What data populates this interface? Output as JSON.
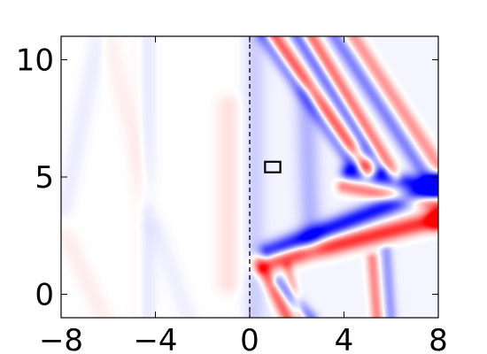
{
  "chart_data": {
    "type": "heatmap",
    "title": "",
    "xlabel": "",
    "ylabel": "",
    "xlim": [
      -8,
      8
    ],
    "ylim": [
      -1,
      11
    ],
    "x_ticks": [
      -8,
      -4,
      0,
      4,
      8
    ],
    "y_ticks": [
      0,
      5,
      10
    ],
    "x_tick_labels": [
      "−8",
      "−4",
      "0",
      "4",
      "8"
    ],
    "y_tick_labels": [
      "0",
      "5",
      "10"
    ],
    "grid": false,
    "colormap": "bwr",
    "colors": {
      "positive": "#ff0000",
      "negative": "#0000ff",
      "zero": "#ffffff"
    },
    "marker_line": {
      "x": 0,
      "style": "dashed"
    },
    "marker_box": {
      "x": [
        0.65,
        1.3
      ],
      "y": [
        5.2,
        5.65
      ]
    },
    "features": [
      {
        "kind": "band",
        "x0": 0.6,
        "y0": 11,
        "x1": 4.4,
        "y1": 5.5,
        "sign": -1,
        "amp": 0.55,
        "w": 0.22
      },
      {
        "kind": "band",
        "x0": 1.0,
        "y0": 11,
        "x1": 5.0,
        "y1": 5.2,
        "sign": 1,
        "amp": 0.8,
        "w": 0.22
      },
      {
        "kind": "band",
        "x0": 2.0,
        "y0": 11,
        "x1": 5.6,
        "y1": 5.3,
        "sign": -1,
        "amp": 0.5,
        "w": 0.2
      },
      {
        "kind": "band",
        "x0": 2.6,
        "y0": 11,
        "x1": 6.2,
        "y1": 5.0,
        "sign": 1,
        "amp": 0.6,
        "w": 0.2
      },
      {
        "kind": "band",
        "x0": 3.6,
        "y0": 11,
        "x1": 7.6,
        "y1": 4.8,
        "sign": -1,
        "amp": 0.45,
        "w": 0.22
      },
      {
        "kind": "band",
        "x0": 4.4,
        "y0": 11,
        "x1": 8.0,
        "y1": 5.5,
        "sign": 1,
        "amp": 0.45,
        "w": 0.22
      },
      {
        "kind": "band",
        "x0": 4.2,
        "y0": 5.2,
        "x1": 8.0,
        "y1": 4.6,
        "sign": -1,
        "amp": 0.8,
        "w": 0.25
      },
      {
        "kind": "band",
        "x0": 4.0,
        "y0": 4.6,
        "x1": 8.0,
        "y1": 3.8,
        "sign": 1,
        "amp": 0.55,
        "w": 0.22
      },
      {
        "kind": "band",
        "x0": 0.8,
        "y0": 1.8,
        "x1": 8.0,
        "y1": 4.6,
        "sign": -1,
        "amp": 0.9,
        "w": 0.28
      },
      {
        "kind": "band",
        "x0": 0.5,
        "y0": 1.3,
        "x1": 8.0,
        "y1": 3.2,
        "sign": 1,
        "amp": 0.85,
        "w": 0.28
      },
      {
        "kind": "band",
        "x0": 0.6,
        "y0": 1.0,
        "x1": 1.6,
        "y1": -1,
        "sign": 1,
        "amp": 0.65,
        "w": 0.2
      },
      {
        "kind": "band",
        "x0": 1.2,
        "y0": 0.5,
        "x1": 2.6,
        "y1": -1,
        "sign": -1,
        "amp": 0.45,
        "w": 0.2
      },
      {
        "kind": "band",
        "x0": 1.6,
        "y0": 1.2,
        "x1": 2.2,
        "y1": -1,
        "sign": 1,
        "amp": 0.35,
        "w": 0.15
      },
      {
        "kind": "band",
        "x0": 5.2,
        "y0": 1.5,
        "x1": 5.4,
        "y1": -1,
        "sign": 1,
        "amp": 0.5,
        "w": 0.18
      },
      {
        "kind": "band",
        "x0": 5.8,
        "y0": 1.8,
        "x1": 6.0,
        "y1": -1,
        "sign": -1,
        "amp": 0.35,
        "w": 0.18
      },
      {
        "kind": "band",
        "x0": 0.2,
        "y0": 11,
        "x1": 0.2,
        "y1": -1,
        "sign": -1,
        "amp": 0.15,
        "w": 0.35
      },
      {
        "kind": "band",
        "x0": 2.4,
        "y0": 8.5,
        "x1": 2.6,
        "y1": 2.0,
        "sign": -1,
        "amp": 0.25,
        "w": 0.35
      },
      {
        "kind": "band",
        "x0": -0.9,
        "y0": 8.0,
        "x1": -0.9,
        "y1": 0.5,
        "sign": 1,
        "amp": 0.12,
        "w": 0.35
      },
      {
        "kind": "band",
        "x0": -4.4,
        "y0": 11,
        "x1": -4.4,
        "y1": -1,
        "sign": -1,
        "amp": 0.1,
        "w": 0.3
      },
      {
        "kind": "band",
        "x0": -4.7,
        "y0": 11,
        "x1": -4.7,
        "y1": -1,
        "sign": 1,
        "amp": 0.06,
        "w": 0.25
      },
      {
        "kind": "band",
        "x0": -8.0,
        "y0": 3.0,
        "x1": -6.4,
        "y1": 11,
        "sign": -1,
        "amp": 0.07,
        "w": 0.3
      },
      {
        "kind": "band",
        "x0": -8.0,
        "y0": 3.0,
        "x1": -6.2,
        "y1": -1,
        "sign": 1,
        "amp": 0.07,
        "w": 0.3
      },
      {
        "kind": "band",
        "x0": -6.0,
        "y0": 11,
        "x1": -4.2,
        "y1": 3.5,
        "sign": 1,
        "amp": 0.06,
        "w": 0.3
      },
      {
        "kind": "band",
        "x0": -4.2,
        "y0": 3.5,
        "x1": -2.6,
        "y1": -1,
        "sign": -1,
        "amp": 0.06,
        "w": 0.3
      },
      {
        "kind": "spot",
        "x": 7.95,
        "y": 4.7,
        "sign": -1,
        "amp": 1.0,
        "w": 0.3
      },
      {
        "kind": "spot",
        "x": 7.95,
        "y": 3.2,
        "sign": 1,
        "amp": 1.0,
        "w": 0.3
      },
      {
        "kind": "spot",
        "x": 5.0,
        "y": 5.4,
        "sign": 1,
        "amp": 0.4,
        "w": 0.3
      },
      {
        "kind": "spot",
        "x": 4.6,
        "y": 5.9,
        "sign": -1,
        "amp": 0.4,
        "w": 0.3
      }
    ]
  }
}
